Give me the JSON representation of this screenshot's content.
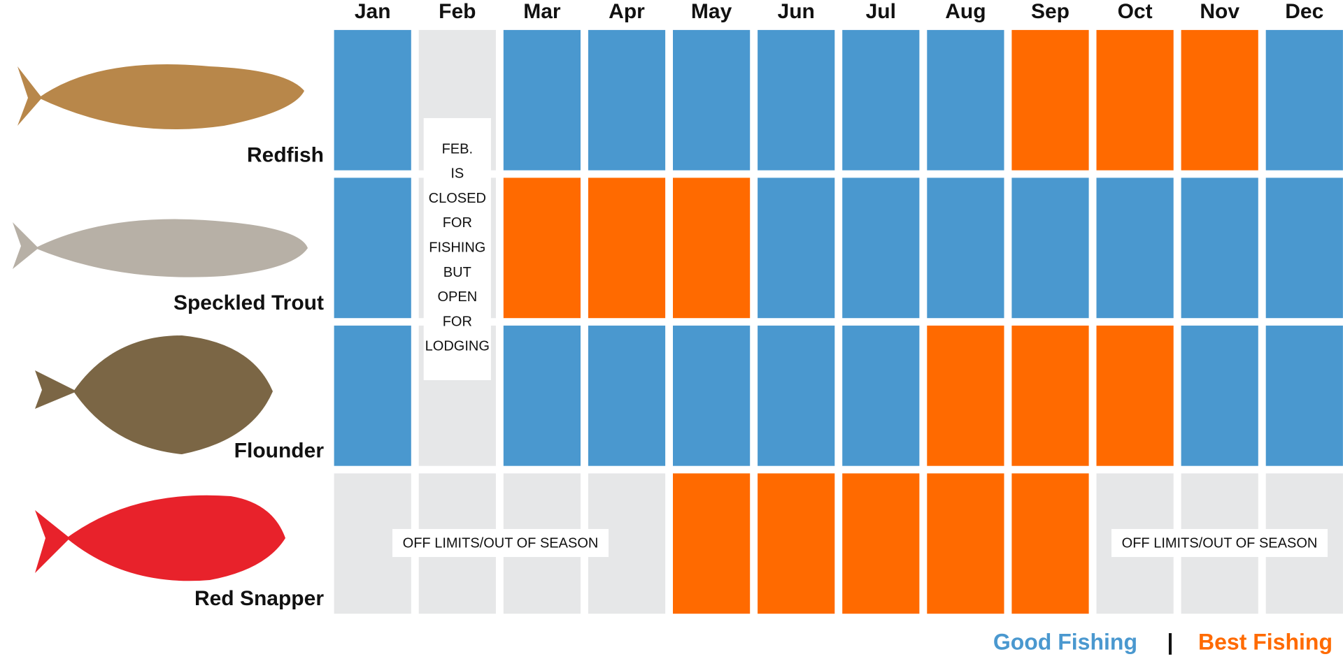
{
  "months": [
    "Jan",
    "Feb",
    "Mar",
    "Apr",
    "May",
    "Jun",
    "Jul",
    "Aug",
    "Sep",
    "Oct",
    "Nov",
    "Dec"
  ],
  "rows": [
    {
      "name": "Redfish",
      "cells": [
        "#4a98cf",
        "#e6e7e8",
        "#4a98cf",
        "#4a98cf",
        "#4a98cf",
        "#4a98cf",
        "#4a98cf",
        "#4a98cf",
        "#ff6a00",
        "#ff6a00",
        "#ff6a00",
        "#4a98cf"
      ]
    },
    {
      "name": "Speckled Trout",
      "cells": [
        "#4a98cf",
        "#e6e7e8",
        "#ff6a00",
        "#ff6a00",
        "#ff6a00",
        "#4a98cf",
        "#4a98cf",
        "#4a98cf",
        "#4a98cf",
        "#4a98cf",
        "#4a98cf",
        "#4a98cf"
      ]
    },
    {
      "name": "Flounder",
      "cells": [
        "#4a98cf",
        "#e6e7e8",
        "#4a98cf",
        "#4a98cf",
        "#4a98cf",
        "#4a98cf",
        "#4a98cf",
        "#ff6a00",
        "#ff6a00",
        "#ff6a00",
        "#4a98cf",
        "#4a98cf"
      ]
    },
    {
      "name": "Red Snapper",
      "cells": [
        "#e6e7e8",
        "#e6e7e8",
        "#e6e7e8",
        "#e6e7e8",
        "#ff6a00",
        "#ff6a00",
        "#ff6a00",
        "#ff6a00",
        "#ff6a00",
        "#e6e7e8",
        "#e6e7e8",
        "#e6e7e8"
      ]
    }
  ],
  "feb_note": [
    "FEB.",
    "IS",
    "CLOSED",
    "FOR",
    "FISHING",
    "BUT",
    "OPEN",
    "FOR",
    "LODGING"
  ],
  "off_limits_labels": [
    "OFF LIMITS/OUT OF SEASON",
    "OFF LIMITS/OUT OF SEASON"
  ],
  "legend": [
    {
      "label": "Good Fishing",
      "color": "#4a98cf"
    },
    {
      "label": "Best Fishing",
      "color": "#ff6a00"
    }
  ],
  "legend_separator": "|"
}
